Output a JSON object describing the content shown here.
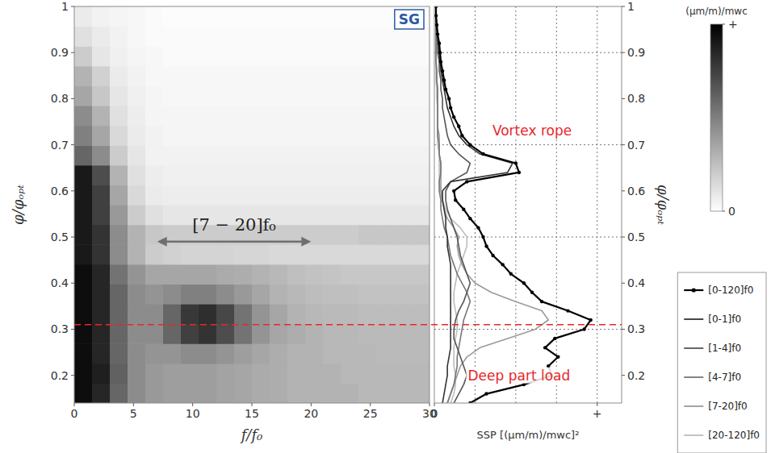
{
  "chart_data": [
    {
      "type": "heatmap",
      "xlabel": "f/f₀",
      "ylabel": "φ/φₒₚₜ",
      "xlim": [
        0,
        30
      ],
      "xticks": [
        0,
        5,
        10,
        15,
        20,
        25,
        30
      ],
      "ylim": [
        0.14,
        1
      ],
      "yticks": [
        0.2,
        0.3,
        0.4,
        0.5,
        0.6,
        0.7,
        0.8,
        0.9,
        1
      ],
      "x_edges": [
        0,
        1.5,
        3,
        4.5,
        6,
        7.5,
        9,
        10.5,
        12,
        13.5,
        15,
        16.5,
        18,
        19.5,
        21,
        22.5,
        24,
        25.5,
        27,
        28.5,
        30
      ],
      "y_edges": [
        0.14,
        0.183,
        0.226,
        0.269,
        0.312,
        0.355,
        0.398,
        0.441,
        0.484,
        0.527,
        0.57,
        0.613,
        0.656,
        0.699,
        0.742,
        0.785,
        0.828,
        0.871,
        0.914,
        0.957,
        1
      ],
      "cells": [
        [
          0.95,
          0.85,
          0.6,
          0.45,
          0.4,
          0.38,
          0.38,
          0.38,
          0.36,
          0.35,
          0.33,
          0.32,
          0.3,
          0.3,
          0.3,
          0.3,
          0.28,
          0.28,
          0.28,
          0.28
        ],
        [
          0.95,
          0.88,
          0.62,
          0.45,
          0.4,
          0.38,
          0.38,
          0.38,
          0.36,
          0.35,
          0.33,
          0.32,
          0.3,
          0.3,
          0.3,
          0.28,
          0.28,
          0.28,
          0.28,
          0.28
        ],
        [
          0.95,
          0.85,
          0.6,
          0.45,
          0.42,
          0.42,
          0.45,
          0.45,
          0.42,
          0.38,
          0.35,
          0.32,
          0.3,
          0.3,
          0.28,
          0.28,
          0.28,
          0.27,
          0.27,
          0.27
        ],
        [
          0.95,
          0.85,
          0.6,
          0.45,
          0.45,
          0.6,
          0.75,
          0.8,
          0.7,
          0.55,
          0.42,
          0.35,
          0.32,
          0.3,
          0.28,
          0.28,
          0.27,
          0.27,
          0.27,
          0.27
        ],
        [
          0.95,
          0.85,
          0.6,
          0.45,
          0.45,
          0.6,
          0.78,
          0.82,
          0.72,
          0.55,
          0.42,
          0.35,
          0.3,
          0.28,
          0.27,
          0.27,
          0.26,
          0.26,
          0.26,
          0.26
        ],
        [
          0.95,
          0.85,
          0.6,
          0.45,
          0.42,
          0.45,
          0.5,
          0.5,
          0.45,
          0.4,
          0.35,
          0.3,
          0.28,
          0.26,
          0.25,
          0.25,
          0.24,
          0.24,
          0.24,
          0.24
        ],
        [
          0.95,
          0.85,
          0.55,
          0.42,
          0.35,
          0.35,
          0.35,
          0.35,
          0.33,
          0.32,
          0.3,
          0.28,
          0.25,
          0.24,
          0.23,
          0.22,
          0.22,
          0.22,
          0.22,
          0.22
        ],
        [
          0.9,
          0.8,
          0.45,
          0.3,
          0.2,
          0.18,
          0.17,
          0.17,
          0.17,
          0.16,
          0.16,
          0.15,
          0.15,
          0.15,
          0.15,
          0.15,
          0.15,
          0.15,
          0.15,
          0.15
        ],
        [
          0.9,
          0.8,
          0.45,
          0.3,
          0.22,
          0.2,
          0.2,
          0.2,
          0.2,
          0.2,
          0.2,
          0.2,
          0.2,
          0.2,
          0.2,
          0.2,
          0.22,
          0.22,
          0.22,
          0.22
        ],
        [
          0.9,
          0.75,
          0.4,
          0.2,
          0.12,
          0.1,
          0.1,
          0.1,
          0.1,
          0.1,
          0.1,
          0.1,
          0.1,
          0.1,
          0.1,
          0.1,
          0.1,
          0.1,
          0.1,
          0.1
        ],
        [
          0.9,
          0.75,
          0.35,
          0.15,
          0.08,
          0.07,
          0.07,
          0.07,
          0.07,
          0.07,
          0.07,
          0.07,
          0.07,
          0.07,
          0.07,
          0.07,
          0.07,
          0.07,
          0.07,
          0.07
        ],
        [
          0.9,
          0.7,
          0.3,
          0.12,
          0.07,
          0.06,
          0.06,
          0.06,
          0.06,
          0.06,
          0.06,
          0.06,
          0.06,
          0.06,
          0.06,
          0.06,
          0.06,
          0.06,
          0.06,
          0.06
        ],
        [
          0.6,
          0.45,
          0.2,
          0.1,
          0.05,
          0.05,
          0.05,
          0.05,
          0.05,
          0.05,
          0.05,
          0.05,
          0.05,
          0.05,
          0.05,
          0.05,
          0.05,
          0.05,
          0.05,
          0.05
        ],
        [
          0.5,
          0.35,
          0.15,
          0.08,
          0.05,
          0.04,
          0.04,
          0.04,
          0.04,
          0.04,
          0.04,
          0.04,
          0.04,
          0.04,
          0.04,
          0.04,
          0.04,
          0.04,
          0.04,
          0.04
        ],
        [
          0.45,
          0.3,
          0.12,
          0.07,
          0.04,
          0.04,
          0.04,
          0.04,
          0.04,
          0.04,
          0.04,
          0.04,
          0.04,
          0.04,
          0.04,
          0.04,
          0.04,
          0.04,
          0.04,
          0.04
        ],
        [
          0.35,
          0.22,
          0.1,
          0.06,
          0.04,
          0.03,
          0.03,
          0.03,
          0.03,
          0.03,
          0.03,
          0.03,
          0.03,
          0.03,
          0.03,
          0.03,
          0.03,
          0.03,
          0.03,
          0.03
        ],
        [
          0.3,
          0.18,
          0.08,
          0.05,
          0.03,
          0.03,
          0.03,
          0.03,
          0.03,
          0.03,
          0.03,
          0.03,
          0.03,
          0.03,
          0.03,
          0.03,
          0.03,
          0.03,
          0.03,
          0.03
        ],
        [
          0.2,
          0.1,
          0.06,
          0.04,
          0.03,
          0.02,
          0.02,
          0.02,
          0.02,
          0.02,
          0.02,
          0.02,
          0.02,
          0.02,
          0.02,
          0.02,
          0.02,
          0.02,
          0.02,
          0.02
        ],
        [
          0.12,
          0.08,
          0.05,
          0.03,
          0.02,
          0.02,
          0.02,
          0.02,
          0.02,
          0.02,
          0.02,
          0.02,
          0.02,
          0.02,
          0.02,
          0.02,
          0.02,
          0.02,
          0.02,
          0.02
        ],
        [
          0.08,
          0.05,
          0.04,
          0.03,
          0.02,
          0.01,
          0.01,
          0.01,
          0.01,
          0.01,
          0.01,
          0.01,
          0.01,
          0.01,
          0.01,
          0.01,
          0.01,
          0.01,
          0.01,
          0.01
        ]
      ],
      "colorbar": {
        "label": "(µm/m)/mwc",
        "range": [
          0,
          1
        ],
        "ticks": [
          0,
          {
            "value": 1,
            "label": "+"
          }
        ]
      },
      "badge": {
        "text": "SG",
        "color": "#2a5aa8"
      },
      "annotations": [
        {
          "text": "[7 − 20]f₀",
          "x": [
            7,
            20
          ],
          "y": 0.49
        }
      ],
      "reference_line": {
        "value": 0.31,
        "color": "#e8262b",
        "line_style": "dashed"
      }
    },
    {
      "type": "line",
      "orientation": "horizontal",
      "xlabel": "SSP [(µm/m)/mwc]²",
      "ylabel": "φ/φₒₚₜ",
      "xlim": [
        0,
        1.15
      ],
      "xticks": [
        0,
        {
          "value": 1,
          "label": "+"
        }
      ],
      "ylim": [
        0.14,
        1
      ],
      "yticks": [
        0.2,
        0.3,
        0.4,
        0.5,
        0.6,
        0.7,
        0.8,
        0.9,
        1
      ],
      "grid": true,
      "x_grid": [
        0.25,
        0.5,
        0.75,
        1
      ],
      "y_grid": [
        0.3,
        0.5,
        0.7,
        0.9
      ],
      "legend": "right",
      "y": [
        0.14,
        0.16,
        0.18,
        0.2,
        0.22,
        0.24,
        0.26,
        0.28,
        0.3,
        0.32,
        0.34,
        0.36,
        0.38,
        0.4,
        0.42,
        0.44,
        0.46,
        0.48,
        0.5,
        0.52,
        0.54,
        0.56,
        0.58,
        0.6,
        0.62,
        0.64,
        0.66,
        0.68,
        0.7,
        0.72,
        0.74,
        0.76,
        0.78,
        0.8,
        0.82,
        0.84,
        0.86,
        0.88,
        0.9,
        0.92,
        0.94,
        0.96,
        0.98,
        1
      ],
      "series": [
        {
          "name": "[0-120]f0",
          "color": "#000000",
          "marker": "circle",
          "values": [
            0.22,
            0.32,
            0.55,
            0.72,
            0.7,
            0.76,
            0.68,
            0.74,
            0.92,
            0.96,
            0.82,
            0.66,
            0.6,
            0.55,
            0.47,
            0.42,
            0.36,
            0.32,
            0.3,
            0.27,
            0.22,
            0.18,
            0.13,
            0.12,
            0.2,
            0.52,
            0.5,
            0.3,
            0.22,
            0.17,
            0.15,
            0.12,
            0.1,
            0.09,
            0.07,
            0.06,
            0.05,
            0.04,
            0.035,
            0.03,
            0.02,
            0.015,
            0.01,
            0.01
          ]
        },
        {
          "name": "[0-1]f0",
          "color": "#333333",
          "marker": "none",
          "values": [
            0.05,
            0.06,
            0.07,
            0.08,
            0.08,
            0.09,
            0.1,
            0.1,
            0.1,
            0.1,
            0.1,
            0.1,
            0.1,
            0.1,
            0.1,
            0.1,
            0.09,
            0.08,
            0.08,
            0.07,
            0.07,
            0.06,
            0.05,
            0.05,
            0.1,
            0.45,
            0.48,
            0.28,
            0.2,
            0.15,
            0.12,
            0.1,
            0.08,
            0.07,
            0.06,
            0.05,
            0.04,
            0.035,
            0.03,
            0.025,
            0.02,
            0.015,
            0.01,
            0.01
          ]
        },
        {
          "name": "[1-4]f0",
          "color": "#555555",
          "marker": "none",
          "values": [
            0.12,
            0.15,
            0.18,
            0.2,
            0.18,
            0.16,
            0.14,
            0.12,
            0.12,
            0.13,
            0.15,
            0.18,
            0.2,
            0.22,
            0.2,
            0.18,
            0.16,
            0.15,
            0.14,
            0.12,
            0.1,
            0.08,
            0.07,
            0.07,
            0.1,
            0.2,
            0.22,
            0.15,
            0.1,
            0.08,
            0.07,
            0.06,
            0.05,
            0.05,
            0.04,
            0.04,
            0.03,
            0.03,
            0.02,
            0.02,
            0.015,
            0.01,
            0.01,
            0.01
          ]
        },
        {
          "name": "[4-7]f0",
          "color": "#777777",
          "marker": "none",
          "values": [
            0.08,
            0.1,
            0.12,
            0.13,
            0.14,
            0.14,
            0.15,
            0.16,
            0.17,
            0.18,
            0.2,
            0.22,
            0.2,
            0.17,
            0.14,
            0.12,
            0.1,
            0.09,
            0.08,
            0.06,
            0.05,
            0.04,
            0.04,
            0.03,
            0.03,
            0.04,
            0.04,
            0.03,
            0.03,
            0.02,
            0.02,
            0.02,
            0.02,
            0.02,
            0.02,
            0.015,
            0.015,
            0.01,
            0.01,
            0.01,
            0.01,
            0.01,
            0.01,
            0.01
          ]
        },
        {
          "name": "[7-20]f0",
          "color": "#9a9a9a",
          "marker": "none",
          "values": [
            0.08,
            0.1,
            0.12,
            0.14,
            0.16,
            0.2,
            0.28,
            0.45,
            0.62,
            0.7,
            0.66,
            0.5,
            0.35,
            0.25,
            0.2,
            0.17,
            0.15,
            0.14,
            0.15,
            0.12,
            0.08,
            0.06,
            0.05,
            0.04,
            0.04,
            0.04,
            0.04,
            0.03,
            0.03,
            0.03,
            0.02,
            0.02,
            0.02,
            0.02,
            0.02,
            0.015,
            0.015,
            0.01,
            0.01,
            0.01,
            0.01,
            0.01,
            0.01,
            0.01
          ]
        },
        {
          "name": "[20-120]f0",
          "color": "#bdbdbd",
          "marker": "none",
          "values": [
            0.1,
            0.12,
            0.13,
            0.13,
            0.12,
            0.12,
            0.12,
            0.13,
            0.14,
            0.14,
            0.13,
            0.12,
            0.12,
            0.13,
            0.14,
            0.16,
            0.18,
            0.2,
            0.2,
            0.16,
            0.1,
            0.07,
            0.05,
            0.04,
            0.03,
            0.03,
            0.03,
            0.03,
            0.02,
            0.02,
            0.02,
            0.02,
            0.02,
            0.015,
            0.015,
            0.01,
            0.01,
            0.01,
            0.01,
            0.01,
            0.01,
            0.01,
            0.01,
            0.01
          ]
        }
      ],
      "annotations": [
        {
          "text": "Vortex rope",
          "x": 0.6,
          "y": 0.73,
          "color": "#e8262b"
        },
        {
          "text": "Deep part load",
          "x": 0.52,
          "y": 0.2,
          "color": "#e8262b"
        }
      ]
    }
  ]
}
